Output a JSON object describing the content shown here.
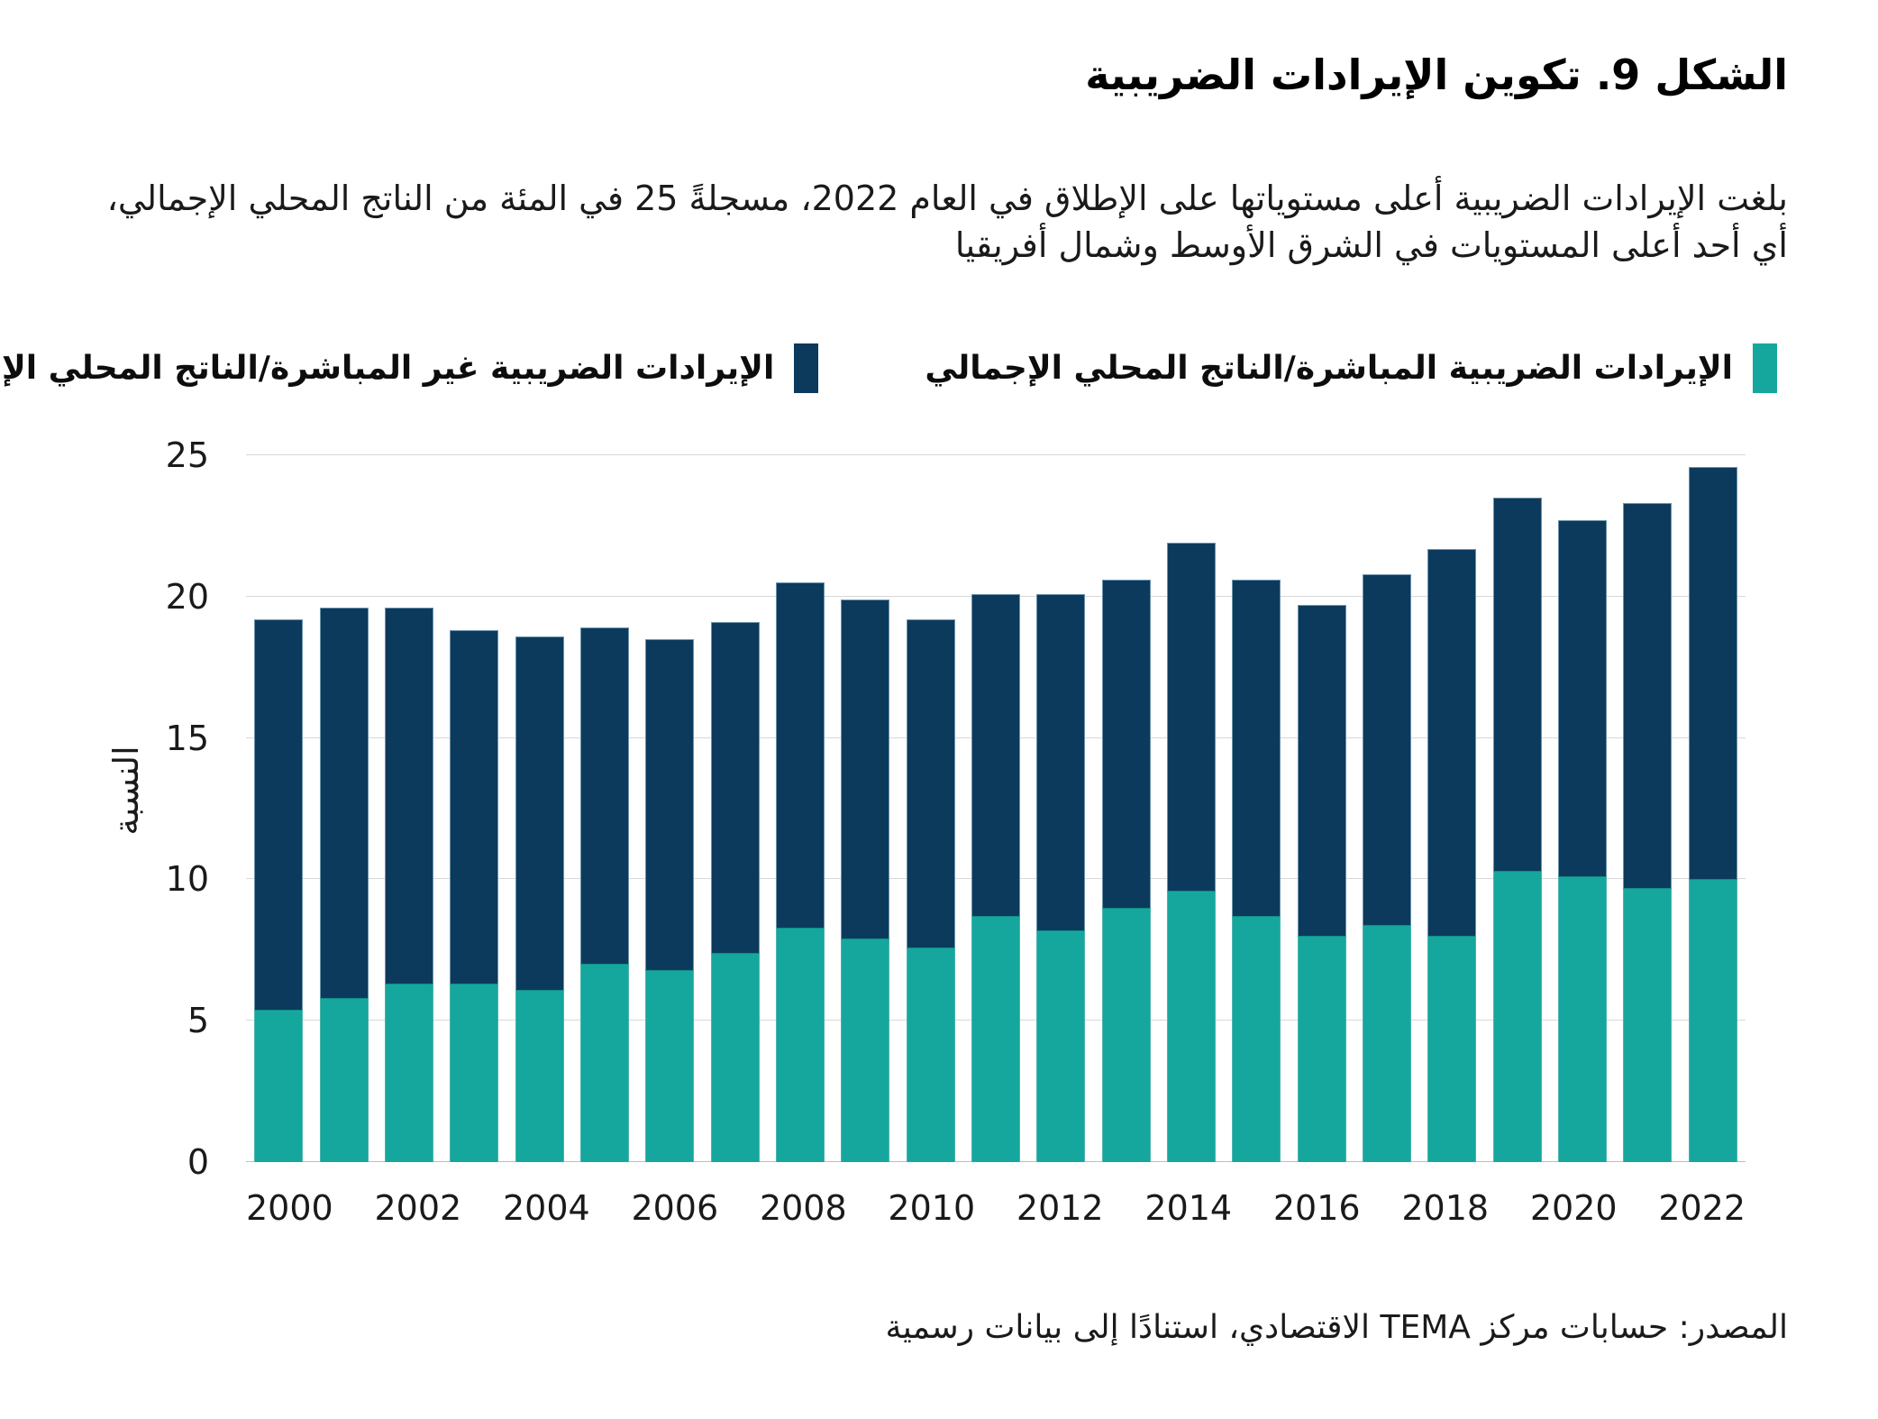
{
  "title": "الشكل 9. تكوين الإيرادات الضريبية",
  "subtitle": "بلغت الإيرادات الضريبية أعلى مستوياتها على الإطلاق في العام 2022، مسجلةً 25 في المئة من الناتج المحلي الإجمالي، أي أحد أعلى المستويات في الشرق الأوسط وشمال أفريقيا",
  "source": "المصدر: حسابات مركز TEMA الاقتصادي، استنادًا إلى بيانات رسمية",
  "colors": {
    "direct": "#15A79E",
    "indirect": "#0B3A5C",
    "grid": "#D8D8D8",
    "text": "#1A1A1A"
  },
  "chart_data": {
    "type": "bar",
    "stacked": true,
    "title": "الشكل 9. تكوين الإيرادات الضريبية",
    "ylabel": "النسبة",
    "xlabel": "",
    "ylim": [
      0,
      25
    ],
    "yticks": [
      0,
      5,
      10,
      15,
      20,
      25
    ],
    "xtick_step": 2,
    "grid": true,
    "legend_position": "top",
    "categories": [
      2000,
      2001,
      2002,
      2003,
      2004,
      2005,
      2006,
      2007,
      2008,
      2009,
      2010,
      2011,
      2012,
      2013,
      2014,
      2015,
      2016,
      2017,
      2018,
      2019,
      2020,
      2021,
      2022
    ],
    "series": [
      {
        "name": "الإيرادات الضريبية المباشرة/الناتج المحلي الإجمالي",
        "key": "direct",
        "color": "#15A79E",
        "values": [
          5.4,
          5.8,
          6.3,
          6.3,
          6.1,
          7.0,
          6.8,
          7.4,
          8.3,
          7.9,
          7.6,
          8.7,
          8.2,
          9.0,
          9.6,
          8.7,
          8.0,
          8.4,
          8.0,
          10.3,
          10.1,
          9.7,
          10.0
        ]
      },
      {
        "name": "الإيرادات الضريبية غير المباشرة/الناتج المحلي الإجمالي",
        "key": "indirect",
        "color": "#0B3A5C",
        "values": [
          13.8,
          13.8,
          13.3,
          12.5,
          12.5,
          11.9,
          11.7,
          11.7,
          12.2,
          12.0,
          11.6,
          11.4,
          11.9,
          11.6,
          12.3,
          11.9,
          11.7,
          12.4,
          13.7,
          13.2,
          12.6,
          13.6,
          14.6
        ]
      }
    ],
    "stack_totals": [
      19.2,
      19.6,
      19.6,
      18.8,
      18.6,
      18.9,
      18.5,
      19.1,
      20.5,
      19.9,
      19.2,
      20.1,
      20.1,
      20.6,
      21.9,
      20.6,
      19.7,
      20.8,
      21.7,
      23.5,
      22.7,
      23.3,
      24.6
    ]
  }
}
